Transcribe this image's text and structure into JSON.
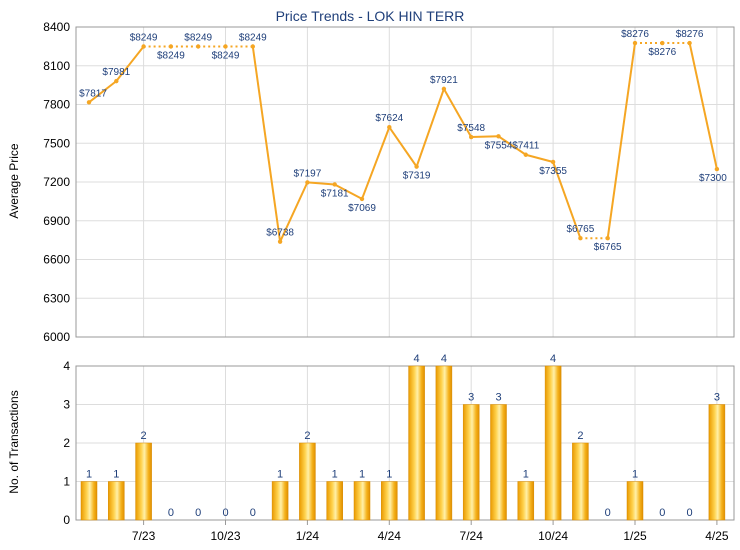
{
  "chart_data": [
    {
      "type": "line",
      "title": "Price Trends - LOK HIN TERR",
      "ylabel": "Average Price",
      "ylim": [
        6000,
        8400
      ],
      "yticks": [
        6000,
        6300,
        6600,
        6900,
        7200,
        7500,
        7800,
        8100,
        8400
      ],
      "grid": true,
      "values": [
        7817,
        7981,
        8249,
        8249,
        8249,
        8249,
        8249,
        6738,
        7197,
        7181,
        7069,
        7624,
        7319,
        7921,
        7548,
        7554,
        7411,
        7355,
        6765,
        6765,
        8276,
        8276,
        8276,
        7300
      ],
      "labels": [
        "$7817",
        "$7981",
        "$8249",
        "$8249",
        "$8249",
        "$8249",
        "$8249",
        "$6738",
        "$7197",
        "$7181",
        "$7069",
        "$7624",
        "$7319",
        "$7921",
        "$7548",
        "$7554",
        "$7411",
        "$7355",
        "$6765",
        "$6765",
        "$8276",
        "$8276",
        "$8276",
        "$7300"
      ],
      "color": "#f5a623"
    },
    {
      "type": "bar",
      "ylabel": "No. of Transactions",
      "ylim": [
        0,
        4
      ],
      "yticks": [
        0,
        1,
        2,
        3,
        4
      ],
      "grid": true,
      "values": [
        1,
        1,
        2,
        0,
        0,
        0,
        0,
        1,
        2,
        1,
        1,
        1,
        4,
        4,
        3,
        3,
        1,
        4,
        2,
        0,
        1,
        0,
        0,
        3
      ],
      "xticks": [
        {
          "index": 2,
          "label": "7/23"
        },
        {
          "index": 5,
          "label": "10/23"
        },
        {
          "index": 8,
          "label": "1/24"
        },
        {
          "index": 11,
          "label": "4/24"
        },
        {
          "index": 14,
          "label": "7/24"
        },
        {
          "index": 17,
          "label": "10/24"
        },
        {
          "index": 20,
          "label": "1/25"
        },
        {
          "index": 23,
          "label": "4/25"
        }
      ],
      "color": "#f5b21c"
    }
  ]
}
